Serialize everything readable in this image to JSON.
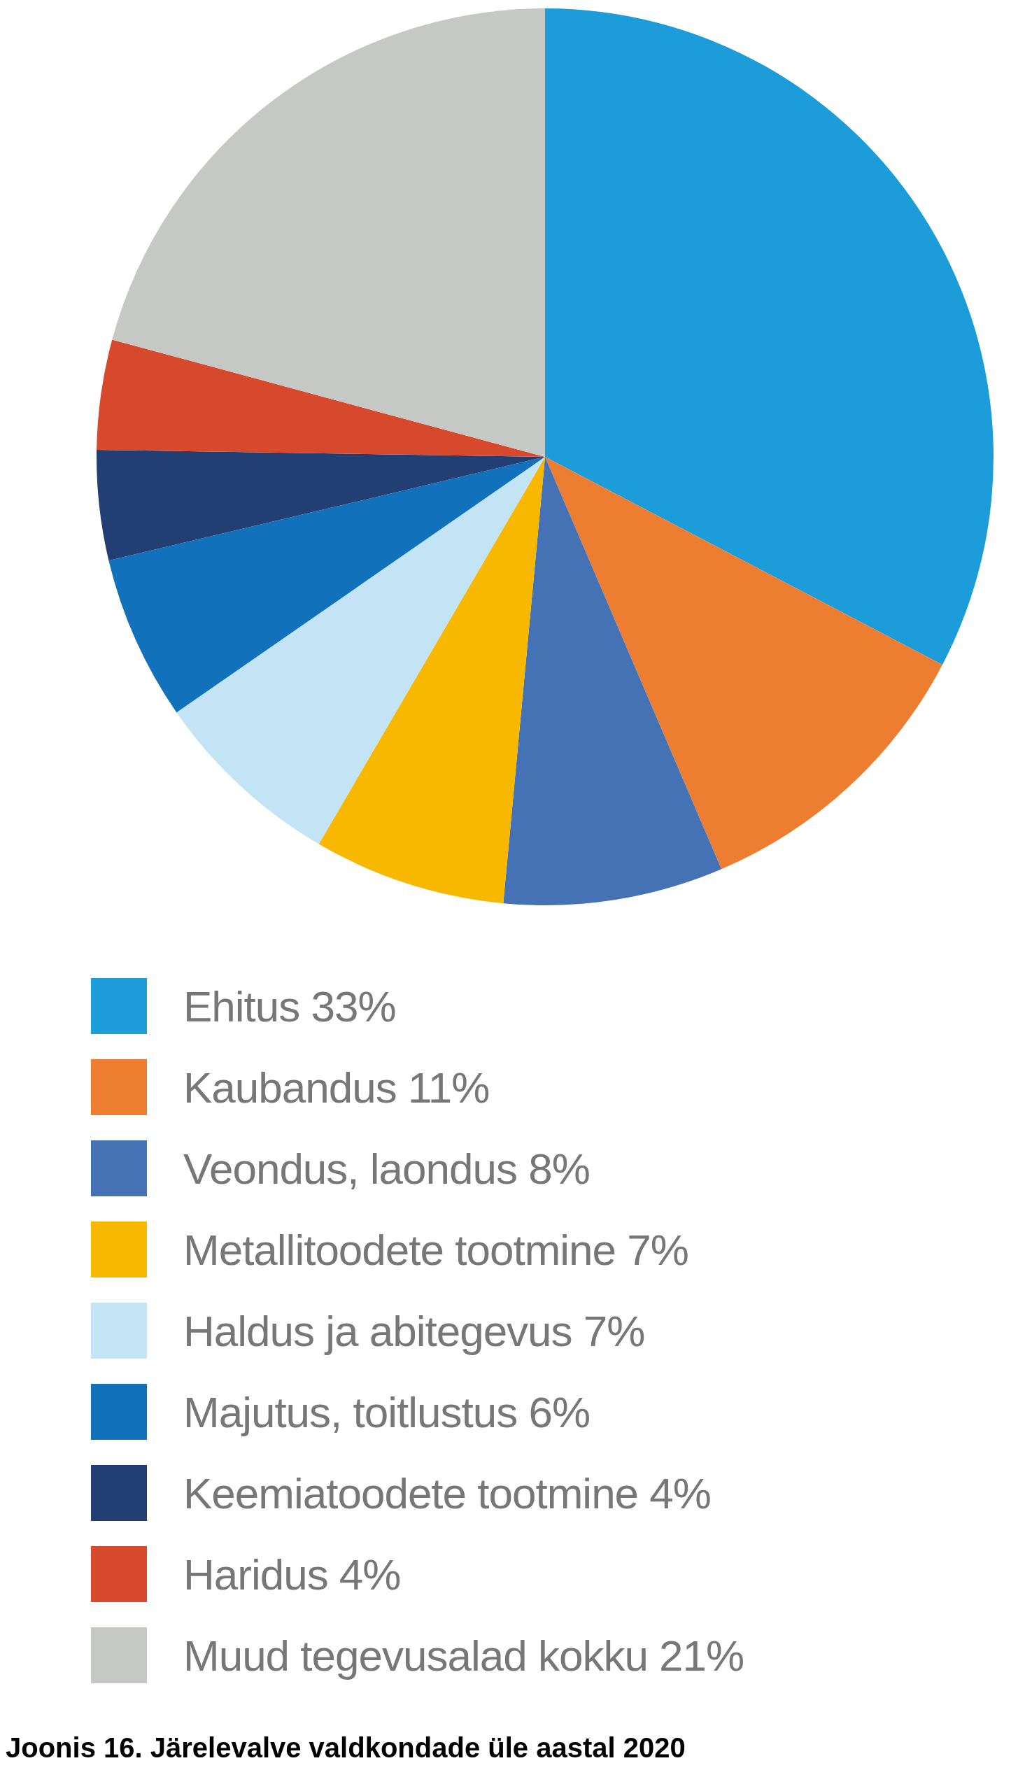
{
  "chart_data": {
    "type": "pie",
    "title": "Joonis 16. Järelevalve valdkondade üle aastal 2020",
    "categories": [
      "Ehitus 33%",
      "Kaubandus 11%",
      "Veondus, laondus 8%",
      "Metallitoodete tootmine 7%",
      "Haldus ja abitegevus 7%",
      "Majutus, toitlustus 6%",
      "Keemiatoodete tootmine 4%",
      "Haridus 4%",
      "Muud tegevusalad kokku 21%"
    ],
    "values": [
      33,
      11,
      8,
      7,
      7,
      6,
      4,
      4,
      21
    ],
    "colors": [
      "#1c9dd9",
      "#ed7d31",
      "#4472b4",
      "#f9b800",
      "#c2e4f5",
      "#1172bb",
      "#213f73",
      "#d6492c",
      "#c6c8c5"
    ],
    "legend": "bottom"
  }
}
